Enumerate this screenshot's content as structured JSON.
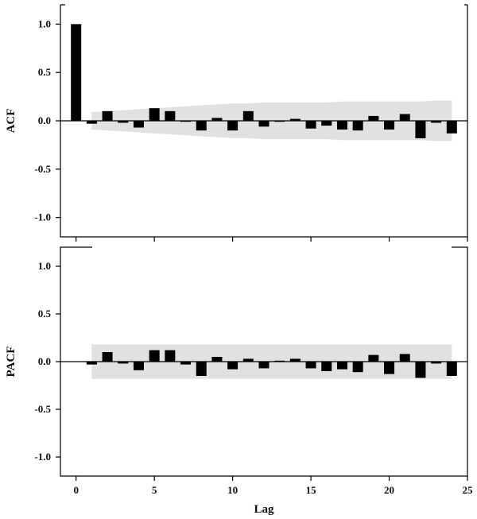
{
  "chart_data": [
    {
      "type": "bar",
      "ylabel": "ACF",
      "xlabel": "",
      "ylim": [
        -1.2,
        1.2
      ],
      "xlim": [
        -1,
        25
      ],
      "yticks": [
        "1.0",
        "0.5",
        "0.0",
        "-0.5",
        "-1.0"
      ],
      "ytick_values": [
        1.0,
        0.5,
        0.0,
        -0.5,
        -1.0
      ],
      "lags": [
        0,
        1,
        2,
        3,
        4,
        5,
        6,
        7,
        8,
        9,
        10,
        11,
        12,
        13,
        14,
        15,
        16,
        17,
        18,
        19,
        20,
        21,
        22,
        23,
        24
      ],
      "values": [
        1.0,
        -0.03,
        0.1,
        -0.02,
        -0.07,
        0.13,
        0.1,
        -0.01,
        -0.1,
        0.03,
        -0.1,
        0.1,
        -0.06,
        -0.01,
        0.02,
        -0.08,
        -0.05,
        -0.09,
        -0.1,
        0.05,
        -0.09,
        0.07,
        -0.18,
        -0.02,
        -0.13
      ],
      "confidence_band": {
        "lags": [
          1,
          2,
          3,
          4,
          5,
          6,
          7,
          8,
          9,
          10,
          11,
          12,
          13,
          14,
          15,
          16,
          17,
          18,
          19,
          20,
          21,
          22,
          23,
          24
        ],
        "upper": [
          0.09,
          0.1,
          0.11,
          0.12,
          0.13,
          0.14,
          0.15,
          0.16,
          0.17,
          0.18,
          0.18,
          0.19,
          0.19,
          0.19,
          0.19,
          0.19,
          0.2,
          0.2,
          0.2,
          0.2,
          0.2,
          0.2,
          0.21,
          0.21
        ],
        "lower": [
          -0.09,
          -0.1,
          -0.11,
          -0.12,
          -0.13,
          -0.14,
          -0.15,
          -0.16,
          -0.17,
          -0.18,
          -0.18,
          -0.19,
          -0.19,
          -0.19,
          -0.19,
          -0.19,
          -0.2,
          -0.2,
          -0.2,
          -0.2,
          -0.2,
          -0.2,
          -0.21,
          -0.21
        ]
      },
      "band_color": "#e1e1e1",
      "bar_color": "#000000"
    },
    {
      "type": "bar",
      "ylabel": "PACF",
      "xlabel": "Lag",
      "ylim": [
        -1.2,
        1.2
      ],
      "xlim": [
        -1,
        25
      ],
      "yticks": [
        "1.0",
        "0.5",
        "0.0",
        "-0.5",
        "-1.0"
      ],
      "ytick_values": [
        1.0,
        0.5,
        0.0,
        -0.5,
        -1.0
      ],
      "xticks": [
        "0",
        "5",
        "10",
        "15",
        "20",
        "25"
      ],
      "xtick_values": [
        0,
        5,
        10,
        15,
        20,
        25
      ],
      "lags": [
        1,
        2,
        3,
        4,
        5,
        6,
        7,
        8,
        9,
        10,
        11,
        12,
        13,
        14,
        15,
        16,
        17,
        18,
        19,
        20,
        21,
        22,
        23,
        24
      ],
      "values": [
        -0.03,
        0.1,
        -0.02,
        -0.09,
        0.12,
        0.12,
        -0.03,
        -0.15,
        0.05,
        -0.08,
        0.03,
        -0.07,
        0.01,
        0.03,
        -0.07,
        -0.1,
        -0.08,
        -0.11,
        0.07,
        -0.13,
        0.08,
        -0.17,
        -0.02,
        -0.15
      ],
      "confidence_band": {
        "lags": [
          1,
          24
        ],
        "upper": [
          0.18,
          0.18
        ],
        "lower": [
          -0.18,
          -0.18
        ]
      },
      "band_color": "#e1e1e1",
      "bar_color": "#000000"
    }
  ]
}
